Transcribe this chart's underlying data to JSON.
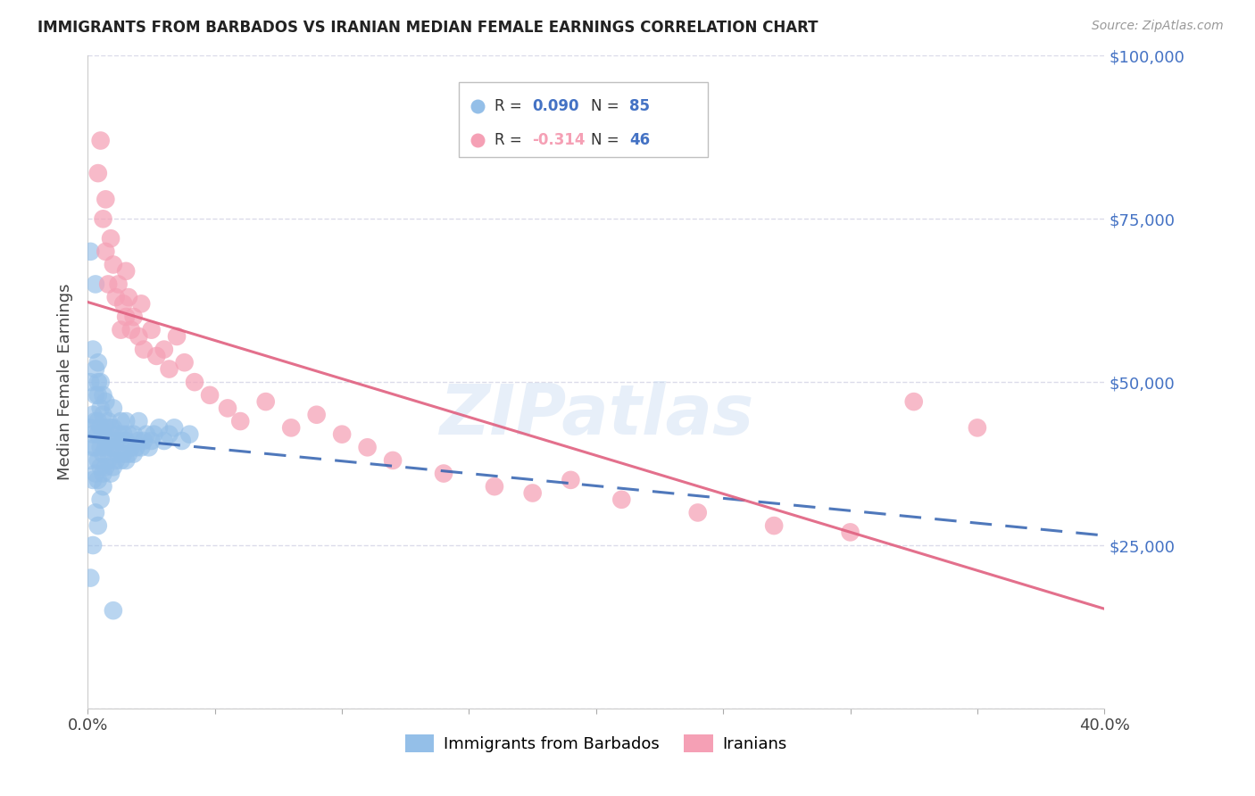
{
  "title": "IMMIGRANTS FROM BARBADOS VS IRANIAN MEDIAN FEMALE EARNINGS CORRELATION CHART",
  "source": "Source: ZipAtlas.com",
  "ylabel": "Median Female Earnings",
  "xlim": [
    0.0,
    0.4
  ],
  "ylim": [
    0,
    100000
  ],
  "yticks": [
    0,
    25000,
    50000,
    75000,
    100000
  ],
  "ytick_labels": [
    "",
    "$25,000",
    "$50,000",
    "$75,000",
    "$100,000"
  ],
  "xticks": [
    0.0,
    0.05,
    0.1,
    0.15,
    0.2,
    0.25,
    0.3,
    0.35,
    0.4
  ],
  "xtick_labels": [
    "0.0%",
    "",
    "",
    "",
    "",
    "",
    "",
    "",
    "40.0%"
  ],
  "legend_r_barbados": "0.090",
  "legend_n_barbados": "85",
  "legend_r_iranians": "-0.314",
  "legend_n_iranians": "46",
  "barbados_color": "#94bfe8",
  "iranians_color": "#f5a0b5",
  "trend_barbados_color": "#3060b0",
  "trend_iranians_color": "#e06080",
  "watermark": "ZIPatlas",
  "background_color": "#ffffff",
  "grid_color": "#d8d8e8",
  "axis_label_color": "#4472c4",
  "barbados_x": [
    0.001,
    0.001,
    0.001,
    0.001,
    0.002,
    0.002,
    0.002,
    0.002,
    0.002,
    0.003,
    0.003,
    0.003,
    0.003,
    0.003,
    0.003,
    0.004,
    0.004,
    0.004,
    0.004,
    0.004,
    0.004,
    0.004,
    0.005,
    0.005,
    0.005,
    0.005,
    0.005,
    0.006,
    0.006,
    0.006,
    0.006,
    0.006,
    0.007,
    0.007,
    0.007,
    0.007,
    0.008,
    0.008,
    0.008,
    0.009,
    0.009,
    0.009,
    0.01,
    0.01,
    0.01,
    0.01,
    0.011,
    0.011,
    0.012,
    0.012,
    0.013,
    0.013,
    0.013,
    0.014,
    0.014,
    0.015,
    0.015,
    0.015,
    0.016,
    0.016,
    0.017,
    0.018,
    0.018,
    0.019,
    0.02,
    0.02,
    0.021,
    0.022,
    0.023,
    0.024,
    0.025,
    0.026,
    0.028,
    0.03,
    0.032,
    0.034,
    0.037,
    0.04,
    0.001,
    0.002,
    0.003,
    0.004,
    0.005,
    0.006,
    0.01
  ],
  "barbados_y": [
    38000,
    43000,
    50000,
    70000,
    35000,
    40000,
    42000,
    45000,
    55000,
    36000,
    40000,
    44000,
    48000,
    52000,
    65000,
    35000,
    38000,
    42000,
    44000,
    48000,
    50000,
    53000,
    37000,
    40000,
    43000,
    46000,
    50000,
    36000,
    39000,
    42000,
    45000,
    48000,
    37000,
    40000,
    43000,
    47000,
    38000,
    41000,
    44000,
    36000,
    40000,
    43000,
    37000,
    40000,
    43000,
    46000,
    38000,
    41000,
    39000,
    42000,
    38000,
    41000,
    44000,
    39000,
    42000,
    38000,
    41000,
    44000,
    39000,
    42000,
    40000,
    39000,
    42000,
    40000,
    41000,
    44000,
    40000,
    41000,
    42000,
    40000,
    41000,
    42000,
    43000,
    41000,
    42000,
    43000,
    41000,
    42000,
    20000,
    25000,
    30000,
    28000,
    32000,
    34000,
    15000
  ],
  "iranians_x": [
    0.004,
    0.005,
    0.006,
    0.007,
    0.007,
    0.008,
    0.009,
    0.01,
    0.011,
    0.012,
    0.013,
    0.014,
    0.015,
    0.015,
    0.016,
    0.017,
    0.018,
    0.02,
    0.021,
    0.022,
    0.025,
    0.027,
    0.03,
    0.032,
    0.035,
    0.038,
    0.042,
    0.048,
    0.055,
    0.06,
    0.07,
    0.08,
    0.09,
    0.1,
    0.11,
    0.12,
    0.14,
    0.16,
    0.175,
    0.19,
    0.21,
    0.24,
    0.27,
    0.3,
    0.325,
    0.35
  ],
  "iranians_y": [
    82000,
    87000,
    75000,
    70000,
    78000,
    65000,
    72000,
    68000,
    63000,
    65000,
    58000,
    62000,
    60000,
    67000,
    63000,
    58000,
    60000,
    57000,
    62000,
    55000,
    58000,
    54000,
    55000,
    52000,
    57000,
    53000,
    50000,
    48000,
    46000,
    44000,
    47000,
    43000,
    45000,
    42000,
    40000,
    38000,
    36000,
    34000,
    33000,
    35000,
    32000,
    30000,
    28000,
    27000,
    47000,
    43000
  ]
}
